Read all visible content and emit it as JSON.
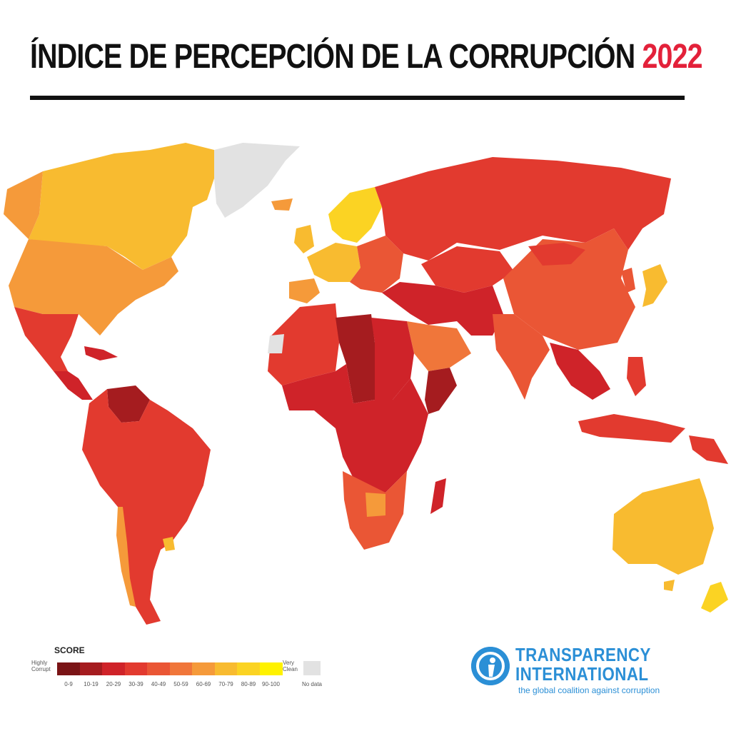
{
  "title": {
    "text": "ÍNDICE DE PERCEPCIÓN DE LA CORRUPCIÓN",
    "year": "2022",
    "year_color": "#e3213a"
  },
  "legend": {
    "heading": "SCORE",
    "low_label": "Highly\nCorrupt",
    "high_label": "Very\nClean",
    "nodata_label": "No data",
    "nodata_color": "#e2e2e2",
    "bins": [
      {
        "label": "0-9",
        "color": "#7a1416"
      },
      {
        "label": "10-19",
        "color": "#a51c1f"
      },
      {
        "label": "20-29",
        "color": "#cf2329"
      },
      {
        "label": "30-39",
        "color": "#e23a2f"
      },
      {
        "label": "40-49",
        "color": "#ea5635"
      },
      {
        "label": "50-59",
        "color": "#f0763a"
      },
      {
        "label": "60-69",
        "color": "#f59a3a"
      },
      {
        "label": "70-79",
        "color": "#f8bb30"
      },
      {
        "label": "80-89",
        "color": "#fbd323"
      },
      {
        "label": "90-100",
        "color": "#fff200"
      }
    ]
  },
  "logo": {
    "line1": "TRANSPARENCY",
    "line2": "INTERNATIONAL",
    "tagline": "the global coalition against corruption",
    "color": "#2b8fd6"
  },
  "map_regions": [
    {
      "name": "Greenland",
      "bin": "no data"
    },
    {
      "name": "Canada",
      "bin": "70-79"
    },
    {
      "name": "USA",
      "bin": "60-69"
    },
    {
      "name": "Mexico",
      "bin": "30-39"
    },
    {
      "name": "Central America",
      "bin": "20-29"
    },
    {
      "name": "Venezuela",
      "bin": "10-19"
    },
    {
      "name": "Brazil",
      "bin": "30-39"
    },
    {
      "name": "Argentina",
      "bin": "30-39"
    },
    {
      "name": "Chile",
      "bin": "60-69"
    },
    {
      "name": "Uruguay",
      "bin": "70-79"
    },
    {
      "name": "Scandinavia",
      "bin": "80-89"
    },
    {
      "name": "Western Europe",
      "bin": "70-79"
    },
    {
      "name": "Eastern Europe",
      "bin": "40-49"
    },
    {
      "name": "Russia",
      "bin": "20-29"
    },
    {
      "name": "Central Asia",
      "bin": "20-29"
    },
    {
      "name": "Middle East",
      "bin": "20-29"
    },
    {
      "name": "Saudi Arabia & Gulf",
      "bin": "50-59"
    },
    {
      "name": "North Africa",
      "bin": "30-39"
    },
    {
      "name": "Libya",
      "bin": "10-19"
    },
    {
      "name": "Sub-Saharan Africa",
      "bin": "20-29"
    },
    {
      "name": "Somalia",
      "bin": "10-19"
    },
    {
      "name": "Southern Africa",
      "bin": "40-49"
    },
    {
      "name": "Botswana",
      "bin": "60-69"
    },
    {
      "name": "Madagascar",
      "bin": "20-29"
    },
    {
      "name": "China",
      "bin": "40-49"
    },
    {
      "name": "India",
      "bin": "40-49"
    },
    {
      "name": "Japan",
      "bin": "70-79"
    },
    {
      "name": "Southeast Asia",
      "bin": "30-39"
    },
    {
      "name": "Indonesia",
      "bin": "30-39"
    },
    {
      "name": "Papua New Guinea",
      "bin": "30-39"
    },
    {
      "name": "Australia",
      "bin": "70-79"
    },
    {
      "name": "New Zealand",
      "bin": "80-89"
    }
  ]
}
